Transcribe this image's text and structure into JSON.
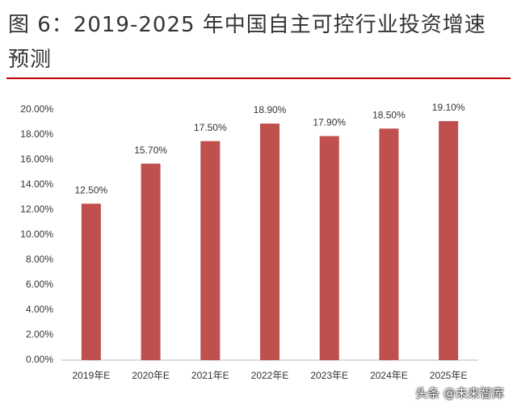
{
  "chart_data": {
    "type": "bar",
    "title": "图 6：2019-2025 年中国自主可控行业投资增速预测",
    "categories": [
      "2019年E",
      "2020年E",
      "2021年E",
      "2022年E",
      "2023年E",
      "2024年E",
      "2025年E"
    ],
    "values": [
      12.5,
      15.7,
      17.5,
      18.9,
      17.9,
      18.5,
      19.1
    ],
    "value_labels": [
      "12.50%",
      "15.70%",
      "17.50%",
      "18.90%",
      "17.90%",
      "18.50%",
      "19.10%"
    ],
    "color": "#c0504d",
    "ylim": [
      0,
      20
    ],
    "yticks": [
      {
        "value": 0,
        "label": "0.00%"
      },
      {
        "value": 2,
        "label": "2.00%"
      },
      {
        "value": 4,
        "label": "4.00%"
      },
      {
        "value": 6,
        "label": "6.00%"
      },
      {
        "value": 8,
        "label": "8.00%"
      },
      {
        "value": 10,
        "label": "10.00%"
      },
      {
        "value": 12,
        "label": "12.00%"
      },
      {
        "value": 14,
        "label": "14.00%"
      },
      {
        "value": 16,
        "label": "16.00%"
      },
      {
        "value": 18,
        "label": "18.00%"
      },
      {
        "value": 20,
        "label": "20.00%"
      }
    ],
    "grid": false
  },
  "watermark": "头条 @未来智库"
}
